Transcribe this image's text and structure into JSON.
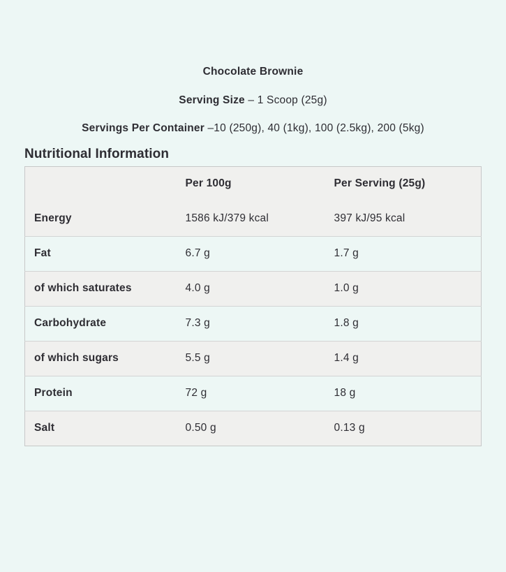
{
  "page": {
    "background": "#edf7f5",
    "text_color": "#2e2d33",
    "product_title": "Chocolate Brownie",
    "serving_size": {
      "label": "Serving Size",
      "value": "– 1 Scoop (25g)"
    },
    "servings_per_container": {
      "label": "Servings Per Container",
      "value": "–10 (250g), 40 (1kg), 100 (2.5kg), 200 (5kg)"
    },
    "section_heading": "Nutritional Information"
  },
  "table": {
    "header": {
      "spacer": "",
      "per_100g": "Per 100g",
      "per_serving": "Per Serving (25g)"
    },
    "row_colors": {
      "gray": "#f0f0ee",
      "mint": "#edf7f5",
      "border": "#c7c8c8"
    },
    "rows": [
      {
        "label": "Energy",
        "per_100g": "1586 kJ/379 kcal",
        "per_serving": "397 kJ/95 kcal",
        "shade": "gray"
      },
      {
        "label": "Fat",
        "per_100g": "6.7 g",
        "per_serving": "1.7 g",
        "shade": "mint"
      },
      {
        "label": "of which saturates",
        "per_100g": "4.0 g",
        "per_serving": "1.0 g",
        "shade": "gray"
      },
      {
        "label": "Carbohydrate",
        "per_100g": "7.3 g",
        "per_serving": "1.8 g",
        "shade": "mint"
      },
      {
        "label": "of which sugars",
        "per_100g": "5.5 g",
        "per_serving": "1.4 g",
        "shade": "gray"
      },
      {
        "label": "Protein",
        "per_100g": "72 g",
        "per_serving": "18 g",
        "shade": "mint"
      },
      {
        "label": "Salt",
        "per_100g": "0.50 g",
        "per_serving": "0.13 g",
        "shade": "gray"
      }
    ]
  }
}
